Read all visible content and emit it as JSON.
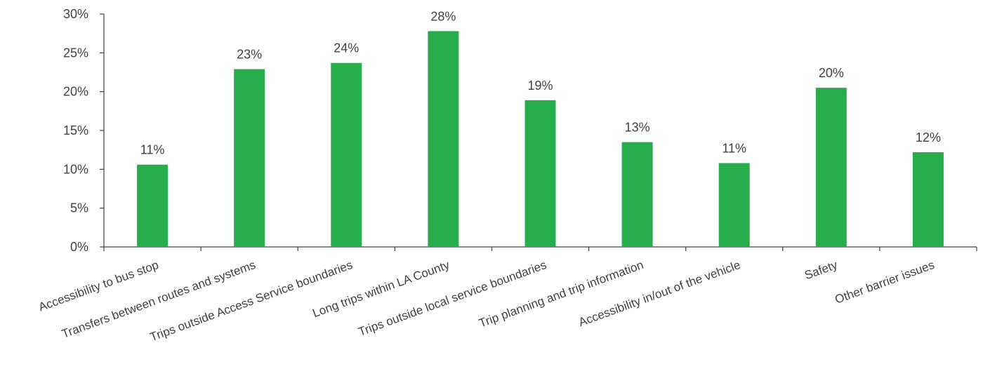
{
  "chart_data": {
    "type": "bar",
    "title": "",
    "xlabel": "",
    "ylabel": "",
    "categories": [
      "Accessibility to bus stop",
      "Transfers between routes and systems",
      "Trips outside Access Service boundaries",
      "Long trips within LA County",
      "Trips outside local service boundaries",
      "Trip planning and trip information",
      "Accessibility in/out of the vehicle",
      "Safety",
      "Other barrier issues"
    ],
    "values": [
      10.6,
      22.9,
      23.7,
      27.8,
      18.9,
      13.5,
      10.8,
      20.5,
      12.2
    ],
    "data_labels": [
      "11%",
      "23%",
      "24%",
      "28%",
      "19%",
      "13%",
      "11%",
      "20%",
      "12%"
    ],
    "ylim": [
      0,
      30
    ],
    "y_ticks": [
      0,
      5,
      10,
      15,
      20,
      25,
      30
    ],
    "y_tick_labels": [
      "0%",
      "5%",
      "10%",
      "15%",
      "20%",
      "25%",
      "30%"
    ],
    "grid": false,
    "legend": "none",
    "bar_color": "#28ad4c",
    "axis_color": "#404040",
    "text_color": "#404040"
  }
}
